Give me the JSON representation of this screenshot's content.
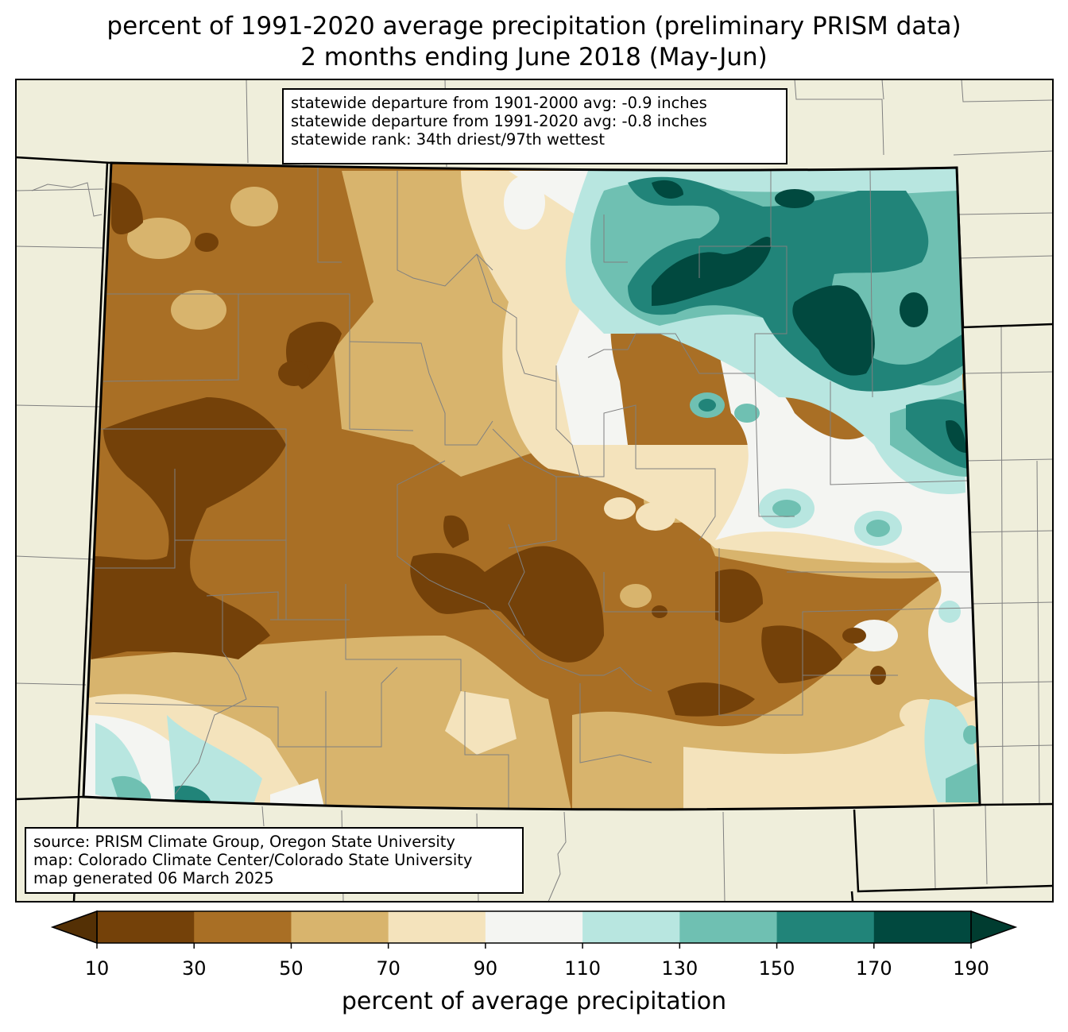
{
  "title": {
    "line1": "percent of 1991-2020 average precipitation (preliminary PRISM data)",
    "line2": "2 months ending June 2018 (May-Jun)"
  },
  "stats": {
    "line1": "statewide departure from 1901-2000 avg: -0.9 inches",
    "line2": "statewide departure from 1991-2020 avg: -0.8 inches",
    "line3": "statewide rank: 34th driest/97th wettest"
  },
  "credits": {
    "line1": "source: PRISM Climate Group, Oregon State University",
    "line2": "map: Colorado Climate Center/Colorado State University",
    "line3": "map generated 06 March 2025"
  },
  "colorbar": {
    "label": "percent of average precipitation",
    "ticks": [
      "10",
      "30",
      "50",
      "70",
      "90",
      "110",
      "130",
      "150",
      "170",
      "190"
    ],
    "bins": [
      {
        "from": 10,
        "to": 30,
        "color": "#744109"
      },
      {
        "from": 30,
        "to": 50,
        "color": "#a96f25"
      },
      {
        "from": 50,
        "to": 70,
        "color": "#d8b46d"
      },
      {
        "from": 70,
        "to": 90,
        "color": "#f4e3bc"
      },
      {
        "from": 90,
        "to": 110,
        "color": "#f4f5f2"
      },
      {
        "from": 110,
        "to": 130,
        "color": "#b8e6e0"
      },
      {
        "from": 130,
        "to": 150,
        "color": "#6fc0b2"
      },
      {
        "from": 150,
        "to": 170,
        "color": "#218479"
      },
      {
        "from": 170,
        "to": 190,
        "color": "#01493f"
      }
    ],
    "under_color": "#543005",
    "over_color": "#003c30"
  },
  "colors": {
    "land": "#efeedb",
    "state_border": "#000000",
    "county_border": "#808080"
  }
}
